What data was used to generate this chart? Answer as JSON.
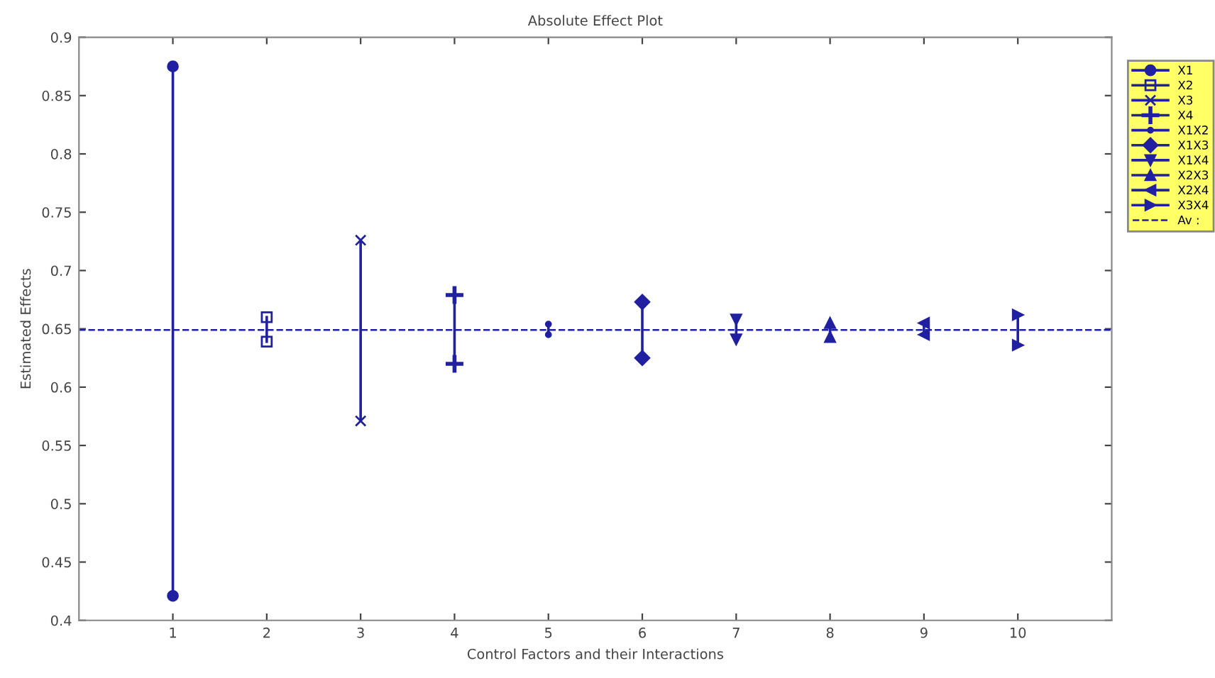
{
  "chart_data": {
    "type": "line",
    "title": "Absolute Effect Plot",
    "xlabel": "Control Factors and their Interactions",
    "ylabel": "Estimated Effects",
    "series": [
      {
        "name": "X1",
        "color": "#2020a0",
        "marker": "circle",
        "x": [
          1,
          1
        ],
        "values": [
          0.875,
          0.421
        ]
      },
      {
        "name": "X2",
        "color": "#2020a0",
        "marker": "square",
        "x": [
          2,
          2
        ],
        "values": [
          0.66,
          0.639
        ]
      },
      {
        "name": "X3",
        "color": "#2020a0",
        "marker": "cross",
        "x": [
          3,
          3
        ],
        "values": [
          0.726,
          0.571
        ]
      },
      {
        "name": "X4",
        "color": "#2020a0",
        "marker": "plus",
        "x": [
          4,
          4
        ],
        "values": [
          0.679,
          0.62
        ]
      },
      {
        "name": "X1X2",
        "color": "#2020a0",
        "marker": "point",
        "x": [
          5,
          5
        ],
        "values": [
          0.654,
          0.645
        ]
      },
      {
        "name": "X1X3",
        "color": "#2020a0",
        "marker": "diamond",
        "x": [
          6,
          6
        ],
        "values": [
          0.673,
          0.625
        ]
      },
      {
        "name": "X1X4",
        "color": "#2020a0",
        "marker": "triangle_down",
        "x": [
          7,
          7
        ],
        "values": [
          0.658,
          0.641
        ]
      },
      {
        "name": "X2X3",
        "color": "#2020a0",
        "marker": "triangle",
        "x": [
          8,
          8
        ],
        "values": [
          0.655,
          0.643
        ]
      },
      {
        "name": "X2X4",
        "color": "#2020a0",
        "marker": "triangle_left",
        "x": [
          9,
          9
        ],
        "values": [
          0.655,
          0.645
        ]
      },
      {
        "name": "X3X4",
        "color": "#2020a0",
        "marker": "triangle_right",
        "x": [
          10,
          10
        ],
        "values": [
          0.662,
          0.636
        ]
      }
    ],
    "ref_lines": [
      {
        "axis": "y",
        "value": 0.649,
        "label": "Av :",
        "color": "#2020a0",
        "line_style": "dashed"
      }
    ],
    "xlim": [
      0,
      11
    ],
    "xticks": [
      1,
      2,
      3,
      4,
      5,
      6,
      7,
      8,
      9,
      10
    ],
    "ylim": [
      0.4,
      0.9
    ],
    "yticks": [
      0.4,
      0.45,
      0.5,
      0.55,
      0.6,
      0.65,
      0.7,
      0.75,
      0.8,
      0.85,
      0.9
    ],
    "grid": false,
    "legend": "right"
  }
}
